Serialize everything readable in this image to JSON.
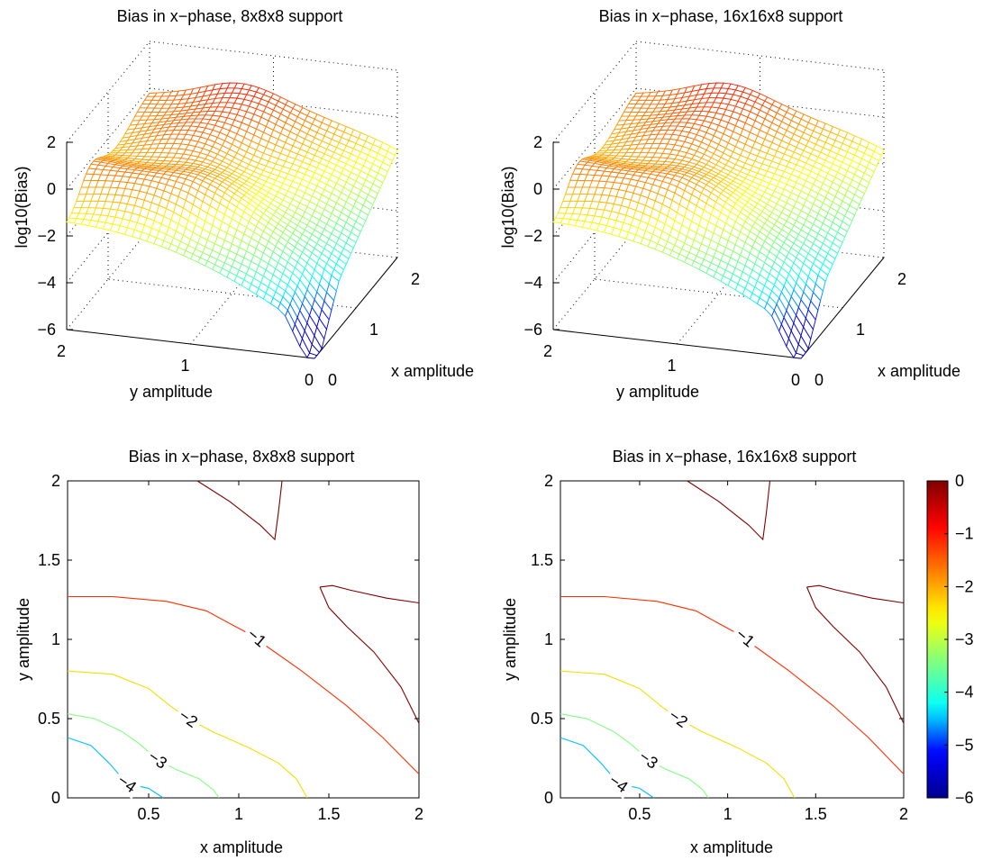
{
  "figure": {
    "colors": {
      "background": "#ffffff",
      "axis": "#000000",
      "colormap": [
        "#00008f",
        "#0000ff",
        "#00ffff",
        "#7fff7f",
        "#ffff00",
        "#ff7f00",
        "#ff0000",
        "#800000"
      ]
    }
  },
  "chart_data": [
    {
      "id": "surface_8x8x8",
      "type": "surface",
      "title": "Bias in x−phase, 8x8x8 support",
      "xlabel": "x amplitude",
      "ylabel": "y amplitude",
      "zlabel": "log10(Bias)",
      "xlim": [
        0,
        2
      ],
      "ylim": [
        0,
        2
      ],
      "zlim": [
        -6,
        2
      ],
      "xticks": [
        "0",
        "1",
        "2"
      ],
      "yticks": [
        "0",
        "1",
        "2"
      ],
      "zticks": [
        "−6",
        "−4",
        "−2",
        "0",
        "2"
      ],
      "grid": true,
      "colormap": "jet",
      "z_profile": {
        "corner_values": {
          "x0_y0": -5.0,
          "x2_y0": -1.4,
          "x0_y2": 0.3,
          "x2_y2": 1.2
        },
        "peak_ridge_value": 2.0,
        "minimum_value": -6.0
      }
    },
    {
      "id": "surface_16x16x8",
      "type": "surface",
      "title": "Bias in x−phase, 16x16x8 support",
      "xlabel": "x amplitude",
      "ylabel": "y amplitude",
      "zlabel": "log10(Bias)",
      "xlim": [
        0,
        2
      ],
      "ylim": [
        0,
        2
      ],
      "zlim": [
        -6,
        2
      ],
      "xticks": [
        "0",
        "1",
        "2"
      ],
      "yticks": [
        "0",
        "1",
        "2"
      ],
      "zticks": [
        "−6",
        "−4",
        "−2",
        "0",
        "2"
      ],
      "grid": true,
      "colormap": "jet",
      "z_profile": {
        "corner_values": {
          "x0_y0": -5.0,
          "x2_y0": -1.4,
          "x0_y2": 0.3,
          "x2_y2": 1.2
        },
        "peak_ridge_value": 2.0,
        "minimum_value": -6.0
      }
    },
    {
      "id": "contour_8x8x8",
      "type": "contour",
      "title": "Bias in x−phase, 8x8x8 support",
      "xlabel": "x amplitude",
      "ylabel": "y amplitude",
      "xlim": [
        0.05,
        2
      ],
      "ylim": [
        0,
        2
      ],
      "xticks": [
        0.5,
        1,
        1.5,
        2
      ],
      "xtick_labels": [
        "0.5",
        "1",
        "1.5",
        "2"
      ],
      "yticks": [
        0,
        0.5,
        1,
        1.5,
        2
      ],
      "ytick_labels": [
        "0",
        "0.5",
        "1",
        "1.5",
        "2"
      ],
      "levels": [
        {
          "level": 0,
          "color": "#800000",
          "label": "",
          "segments": [
            [
              [
                0.77,
                2.0
              ],
              [
                0.95,
                1.87
              ],
              [
                1.12,
                1.72
              ],
              [
                1.2,
                1.63
              ],
              [
                1.22,
                1.8
              ],
              [
                1.24,
                2.0
              ]
            ],
            [
              [
                1.45,
                1.33
              ],
              [
                1.52,
                1.34
              ],
              [
                1.62,
                1.31
              ],
              [
                1.82,
                1.26
              ],
              [
                2.0,
                1.23
              ]
            ],
            [
              [
                1.45,
                1.33
              ],
              [
                1.5,
                1.2
              ],
              [
                1.6,
                1.08
              ],
              [
                1.75,
                0.92
              ],
              [
                1.9,
                0.7
              ],
              [
                2.0,
                0.47
              ]
            ]
          ]
        },
        {
          "level": -1,
          "color": "#ff3000",
          "label": "−1",
          "label_at": [
            1.1,
            1.01
          ],
          "label_angle": 40,
          "segments": [
            [
              [
                0.05,
                1.27
              ],
              [
                0.3,
                1.27
              ],
              [
                0.6,
                1.24
              ],
              [
                0.82,
                1.18
              ],
              [
                0.95,
                1.1
              ],
              [
                1.05,
                1.04
              ],
              [
                1.15,
                0.96
              ],
              [
                1.35,
                0.8
              ],
              [
                1.6,
                0.58
              ],
              [
                1.8,
                0.38
              ],
              [
                2.0,
                0.15
              ]
            ]
          ]
        },
        {
          "level": -2,
          "color": "#f0e000",
          "label": "−2",
          "label_at": [
            0.72,
            0.5
          ],
          "label_angle": 35,
          "segments": [
            [
              [
                0.05,
                0.8
              ],
              [
                0.3,
                0.78
              ],
              [
                0.5,
                0.69
              ],
              [
                0.62,
                0.58
              ],
              [
                0.72,
                0.5
              ],
              [
                0.85,
                0.42
              ],
              [
                1.05,
                0.32
              ],
              [
                1.22,
                0.22
              ],
              [
                1.32,
                0.12
              ],
              [
                1.38,
                0.0
              ]
            ]
          ]
        },
        {
          "level": -3,
          "color": "#80ff80",
          "label": "−3",
          "label_at": [
            0.55,
            0.24
          ],
          "label_angle": 35,
          "segments": [
            [
              [
                0.05,
                0.53
              ],
              [
                0.2,
                0.5
              ],
              [
                0.35,
                0.42
              ],
              [
                0.45,
                0.34
              ],
              [
                0.55,
                0.24
              ],
              [
                0.65,
                0.18
              ],
              [
                0.78,
                0.12
              ],
              [
                0.86,
                0.05
              ],
              [
                0.89,
                0.0
              ]
            ]
          ]
        },
        {
          "level": -4,
          "color": "#00c0ff",
          "label": "−4",
          "label_at": [
            0.38,
            0.09
          ],
          "label_angle": 35,
          "segments": [
            [
              [
                0.05,
                0.38
              ],
              [
                0.18,
                0.33
              ],
              [
                0.28,
                0.22
              ],
              [
                0.38,
                0.09
              ],
              [
                0.5,
                0.06
              ],
              [
                0.58,
                0.0
              ]
            ]
          ]
        }
      ]
    },
    {
      "id": "contour_16x16x8",
      "type": "contour",
      "title": "Bias in x−phase, 16x16x8 support",
      "xlabel": "x amplitude",
      "ylabel": "y amplitude",
      "xlim": [
        0.05,
        2
      ],
      "ylim": [
        0,
        2
      ],
      "xticks": [
        0.5,
        1,
        1.5,
        2
      ],
      "xtick_labels": [
        "0.5",
        "1",
        "1.5",
        "2"
      ],
      "yticks": [
        0,
        0.5,
        1,
        1.5,
        2
      ],
      "ytick_labels": [
        "0",
        "0.5",
        "1",
        "1.5",
        "2"
      ],
      "levels": [
        {
          "level": 0,
          "color": "#800000",
          "label": "",
          "segments": [
            [
              [
                0.77,
                2.0
              ],
              [
                0.95,
                1.87
              ],
              [
                1.12,
                1.72
              ],
              [
                1.2,
                1.63
              ],
              [
                1.22,
                1.8
              ],
              [
                1.24,
                2.0
              ]
            ],
            [
              [
                1.45,
                1.33
              ],
              [
                1.52,
                1.34
              ],
              [
                1.62,
                1.31
              ],
              [
                1.82,
                1.26
              ],
              [
                2.0,
                1.23
              ]
            ],
            [
              [
                1.45,
                1.33
              ],
              [
                1.5,
                1.2
              ],
              [
                1.6,
                1.08
              ],
              [
                1.75,
                0.92
              ],
              [
                1.9,
                0.7
              ],
              [
                2.0,
                0.47
              ]
            ]
          ]
        },
        {
          "level": -1,
          "color": "#ff3000",
          "label": "−1",
          "label_at": [
            1.1,
            1.01
          ],
          "label_angle": 40,
          "segments": [
            [
              [
                0.05,
                1.27
              ],
              [
                0.3,
                1.27
              ],
              [
                0.6,
                1.24
              ],
              [
                0.82,
                1.18
              ],
              [
                0.95,
                1.1
              ],
              [
                1.05,
                1.04
              ],
              [
                1.15,
                0.96
              ],
              [
                1.35,
                0.8
              ],
              [
                1.6,
                0.58
              ],
              [
                1.8,
                0.38
              ],
              [
                2.0,
                0.15
              ]
            ]
          ]
        },
        {
          "level": -2,
          "color": "#f0e000",
          "label": "−2",
          "label_at": [
            0.72,
            0.5
          ],
          "label_angle": 35,
          "segments": [
            [
              [
                0.05,
                0.8
              ],
              [
                0.3,
                0.78
              ],
              [
                0.5,
                0.69
              ],
              [
                0.62,
                0.58
              ],
              [
                0.72,
                0.5
              ],
              [
                0.85,
                0.42
              ],
              [
                1.05,
                0.32
              ],
              [
                1.22,
                0.22
              ],
              [
                1.32,
                0.12
              ],
              [
                1.38,
                0.0
              ]
            ]
          ]
        },
        {
          "level": -3,
          "color": "#80ff80",
          "label": "−3",
          "label_at": [
            0.55,
            0.24
          ],
          "label_angle": 35,
          "segments": [
            [
              [
                0.05,
                0.53
              ],
              [
                0.2,
                0.5
              ],
              [
                0.35,
                0.42
              ],
              [
                0.45,
                0.34
              ],
              [
                0.55,
                0.24
              ],
              [
                0.65,
                0.18
              ],
              [
                0.78,
                0.12
              ],
              [
                0.86,
                0.05
              ],
              [
                0.89,
                0.0
              ]
            ]
          ]
        },
        {
          "level": -4,
          "color": "#00c0ff",
          "label": "−4",
          "label_at": [
            0.38,
            0.09
          ],
          "label_angle": 35,
          "segments": [
            [
              [
                0.05,
                0.38
              ],
              [
                0.18,
                0.33
              ],
              [
                0.28,
                0.22
              ],
              [
                0.38,
                0.09
              ],
              [
                0.5,
                0.06
              ],
              [
                0.58,
                0.0
              ]
            ]
          ]
        }
      ]
    },
    {
      "id": "colorbar",
      "type": "colorbar",
      "colormap": "jet",
      "range": [
        -6,
        0
      ],
      "ticks": [
        "0",
        "−1",
        "−2",
        "−3",
        "−4",
        "−5",
        "−6"
      ]
    }
  ]
}
